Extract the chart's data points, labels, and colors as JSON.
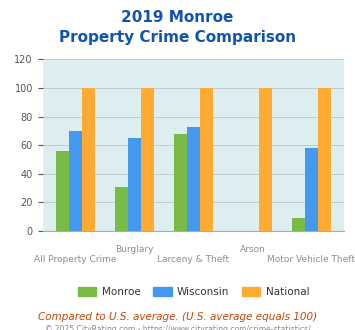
{
  "title_line1": "2019 Monroe",
  "title_line2": "Property Crime Comparison",
  "categories": [
    "All Property Crime",
    "Burglary",
    "Larceny & Theft",
    "Arson",
    "Motor Vehicle Theft"
  ],
  "cat_line1": [
    "",
    "Burglary",
    "",
    "Arson",
    ""
  ],
  "cat_line2": [
    "All Property Crime",
    "",
    "Larceny & Theft",
    "",
    "Motor Vehicle Theft"
  ],
  "monroe": [
    56,
    31,
    68,
    0,
    9
  ],
  "wisconsin": [
    70,
    65,
    73,
    0,
    58
  ],
  "national": [
    100,
    100,
    100,
    100,
    100
  ],
  "monroe_color": "#77bb44",
  "wisconsin_color": "#4499ee",
  "national_color": "#ffaa33",
  "ylim": [
    0,
    120
  ],
  "yticks": [
    0,
    20,
    40,
    60,
    80,
    100,
    120
  ],
  "bg_color": "#ddeef0",
  "title_color": "#1155aa",
  "label_color": "#998888",
  "legend_labels": [
    "Monroe",
    "Wisconsin",
    "National"
  ],
  "footer_text": "Compared to U.S. average. (U.S. average equals 100)",
  "copyright_text": "© 2025 CityRating.com - https://www.cityrating.com/crime-statistics/",
  "bar_width": 0.22,
  "grid_color": "#bbcccc"
}
